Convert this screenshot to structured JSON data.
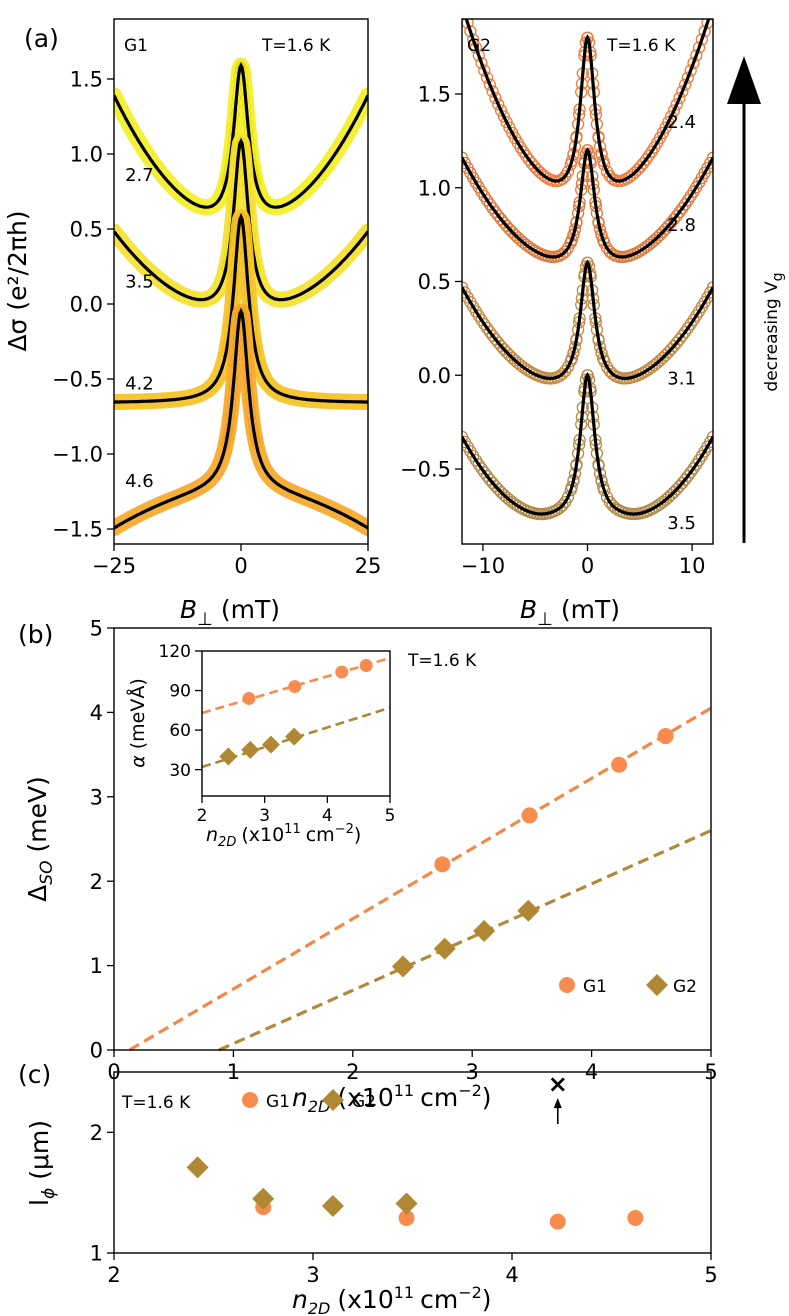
{
  "chart_data": [
    {
      "type": "scatter",
      "id": "a_left",
      "panel_label": "(a)",
      "sample_tag": "G1",
      "temperature": "T=1.6 K",
      "xlabel_sym": "B",
      "xlabel_sub": "⊥",
      "xlabel_unit": "(mT)",
      "ylabel_sym": "Δσ",
      "ylabel_unit": "(e²/2πh)",
      "xlim": [
        -25,
        25
      ],
      "ylim": [
        -1.6,
        1.9
      ],
      "xticks": [
        -25,
        0,
        25
      ],
      "xtick_labels": [
        "−25",
        "0",
        "25"
      ],
      "yticks": [
        -1.5,
        -1.0,
        -0.5,
        0.0,
        0.5,
        1.0,
        1.5
      ],
      "ytick_labels": [
        "−1.5",
        "−1.0",
        "−0.5",
        "0.0",
        "0.5",
        "1.0",
        "1.5"
      ],
      "series": [
        {
          "name": "2.7",
          "offset": 0.0,
          "peak": 1.8,
          "lor_width": 1.8,
          "bg": 0.72,
          "k": 0.0014,
          "shift": 0.0,
          "data_color": "#f3ef2a",
          "data_color_edge": "#e8e000",
          "label_x": -20,
          "label_y": 0.82
        },
        {
          "name": "3.5",
          "offset": -0.75,
          "peak": 1.97,
          "lor_width": 1.8,
          "bg": 0.8,
          "k": 0.0009,
          "shift": 0.0,
          "data_color": "#f5e134",
          "data_color_edge": "#eddc16",
          "label_x": -20,
          "label_y": 0.11
        },
        {
          "name": "4.2",
          "offset": -1.4,
          "peak": 1.98,
          "lor_width": 1.8,
          "bg": 0.74,
          "k": 0.0,
          "shift": 0.0,
          "data_color": "#f7c428",
          "data_color_edge": "#f2b914",
          "label_x": -20,
          "label_y": -0.57
        },
        {
          "name": "4.6",
          "offset": -2.05,
          "peak": 1.94,
          "lor_width": 1.8,
          "bg": 0.74,
          "k": -0.0004,
          "shift": 0.0,
          "data_color": "#f6ab2e",
          "data_color_edge": "#f59d18",
          "label_x": -20,
          "label_y": -1.22
        }
      ]
    },
    {
      "type": "scatter",
      "id": "a_right",
      "sample_tag": "G2",
      "temperature": "T=1.6 K",
      "xlabel_sym": "B",
      "xlabel_sub": "⊥",
      "xlabel_unit": "(mT)",
      "side_label": "decreasing V",
      "side_label_sub": "g",
      "xlim": [
        -12,
        12
      ],
      "ylim": [
        -0.9,
        1.9
      ],
      "xticks": [
        -10,
        0,
        10
      ],
      "xtick_labels": [
        "−10",
        "0",
        "10"
      ],
      "yticks": [
        -0.5,
        0.0,
        0.5,
        1.0,
        1.5
      ],
      "ytick_labels": [
        "−0.5",
        "0.0",
        "0.5",
        "1.0",
        "1.5"
      ],
      "series": [
        {
          "name": "2.4",
          "offset": 1.05,
          "peak": 0.75,
          "min_val": -0.15,
          "dip": 2.2,
          "slope": 0.063,
          "data_color": "#ef7d3c",
          "label_x": 9,
          "label_y": 1.32
        },
        {
          "name": "2.8",
          "offset": 0.55,
          "peak": 0.65,
          "min_val": 0.0,
          "dip": 3.0,
          "slope": 0.036,
          "data_color": "#df7a3e",
          "label_x": 9,
          "label_y": 0.77
        },
        {
          "name": "3.1",
          "offset": 0.0,
          "peak": 0.6,
          "min_val": -0.09,
          "dip": 4.0,
          "slope": 0.033,
          "data_color": "#c48a45",
          "label_x": 9,
          "label_y": -0.05
        },
        {
          "name": "3.5",
          "offset": -0.6,
          "peak": 0.6,
          "min_val": -0.2,
          "dip": 6.5,
          "slope": 0.027,
          "data_color": "#b48a49",
          "label_x": 9,
          "label_y": -0.82
        }
      ]
    },
    {
      "type": "scatter",
      "id": "b_main",
      "panel_label": "(b)",
      "xlabel": "n",
      "xlabel_sub": "2D",
      "xlabel_rest": "(x10",
      "xlabel_sup": "11",
      "xlabel_rest2": "cm",
      "xlabel_sup2": "−2",
      "xlabel_end": ")",
      "ylabel": "Δ",
      "ylabel_sub": "SO",
      "ylabel_unit": "(meV)",
      "temperature": "T=1.6 K",
      "xlim": [
        0,
        5
      ],
      "ylim": [
        0,
        5
      ],
      "xticks": [
        0,
        1,
        2,
        3,
        4,
        5
      ],
      "yticks": [
        0,
        1,
        2,
        3,
        4,
        5
      ],
      "series": [
        {
          "name": "G1",
          "marker": "circle",
          "color": "#f88b4d",
          "line_color": "#f4884a",
          "x": [
            2.75,
            3.48,
            4.23,
            4.62
          ],
          "y": [
            2.2,
            2.78,
            3.38,
            3.72
          ],
          "fit": {
            "x0": 0.13,
            "x1": 5.0,
            "y0": 0.0,
            "y1": 4.05
          }
        },
        {
          "name": "G2",
          "marker": "diamond",
          "color": "#b08733",
          "line_color": "#b08a3c",
          "x": [
            2.42,
            2.77,
            3.1,
            3.47
          ],
          "y": [
            0.99,
            1.2,
            1.41,
            1.65
          ],
          "fit": {
            "x0": 0.88,
            "x1": 5.0,
            "y0": 0.0,
            "y1": 2.6
          }
        }
      ]
    },
    {
      "type": "scatter",
      "id": "b_inset",
      "xlabel": "n",
      "xlabel_sub": "2D",
      "xlabel_rest": "(x10",
      "xlabel_sup": "11",
      "xlabel_rest2": "cm",
      "xlabel_sup2": "−2",
      "xlabel_end": ")",
      "ylabel": "α",
      "ylabel_unit": "(meVÅ)",
      "xlim": [
        2,
        5
      ],
      "ylim": [
        10,
        120
      ],
      "xticks": [
        2,
        3,
        4,
        5
      ],
      "yticks": [
        30,
        60,
        90,
        120
      ],
      "series": [
        {
          "name": "G1",
          "marker": "circle",
          "color": "#f88b4d",
          "x": [
            2.75,
            3.48,
            4.23,
            4.62
          ],
          "y": [
            84,
            93,
            104,
            109
          ],
          "fit": {
            "x0": 2.0,
            "x1": 4.95,
            "y0": 73,
            "y1": 114
          }
        },
        {
          "name": "G2",
          "marker": "diamond",
          "color": "#b08733",
          "x": [
            2.42,
            2.77,
            3.1,
            3.47
          ],
          "y": [
            40,
            45,
            49,
            55
          ],
          "fit": {
            "x0": 2.0,
            "x1": 5.0,
            "y0": 32,
            "y1": 77
          }
        }
      ]
    },
    {
      "type": "scatter",
      "id": "c",
      "panel_label": "(c)",
      "temperature": "T=1.6 K",
      "xlabel": "n",
      "xlabel_sub": "2D",
      "xlabel_rest": "(x10",
      "xlabel_sup": "11",
      "xlabel_rest2": "cm",
      "xlabel_sup2": "−2",
      "xlabel_end": ")",
      "ylabel": "l",
      "ylabel_sub": "ϕ",
      "ylabel_unit": "(μm)",
      "xlim": [
        2,
        5
      ],
      "ylim": [
        1,
        2.5
      ],
      "xticks": [
        2,
        3,
        4,
        5
      ],
      "yticks": [
        1,
        2
      ],
      "outlier": {
        "x": 4.23,
        "y": 2.4,
        "marker": "×"
      },
      "series": [
        {
          "name": "G1",
          "marker": "circle",
          "color": "#f88b4d",
          "x": [
            2.75,
            3.47,
            4.23,
            4.62
          ],
          "y": [
            1.38,
            1.29,
            1.26,
            1.29
          ]
        },
        {
          "name": "G2",
          "marker": "diamond",
          "color": "#b08733",
          "x": [
            2.42,
            2.75,
            3.1,
            3.47
          ],
          "y": [
            1.71,
            1.45,
            1.39,
            1.41
          ]
        }
      ]
    }
  ]
}
